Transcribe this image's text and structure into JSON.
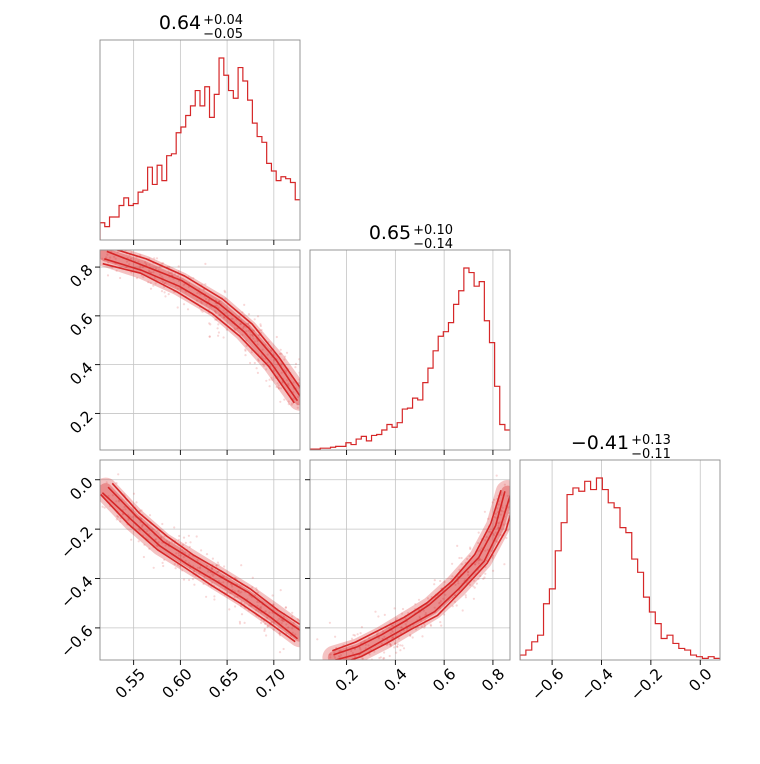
{
  "chart_data": {
    "type": "corner",
    "color": "#d62728",
    "panels": [
      {
        "id": "hist-0",
        "type": "histogram",
        "row": 0,
        "col": 0,
        "title": {
          "value": "0.64",
          "plus": "+0.04",
          "minus": "−0.05"
        },
        "xlim": [
          0.514,
          0.728
        ],
        "bin_values": [
          0.9,
          0.7,
          1.2,
          1.2,
          1.8,
          2.2,
          1.8,
          1.9,
          2.5,
          2.6,
          3.8,
          2.9,
          3.9,
          3.1,
          4.4,
          4.5,
          5.6,
          5.9,
          6.5,
          7.0,
          7.8,
          7.0,
          8.0,
          6.4,
          7.6,
          9.5,
          8.6,
          7.8,
          7.4,
          9.0,
          8.3,
          7.3,
          6.1,
          5.4,
          5.1,
          4.0,
          3.6,
          3.1,
          3.3,
          3.2,
          3.0,
          2.1
        ]
      },
      {
        "id": "scatter-1-0",
        "type": "contour",
        "row": 1,
        "col": 0,
        "xlim": [
          0.514,
          0.728
        ],
        "ylim": [
          0.05,
          0.87
        ],
        "curve": {
          "x": [
            0.52,
            0.56,
            0.6,
            0.64,
            0.67,
            0.7,
            0.728
          ],
          "y": [
            0.85,
            0.8,
            0.73,
            0.64,
            0.54,
            0.41,
            0.26
          ]
        }
      },
      {
        "id": "hist-1",
        "type": "histogram",
        "row": 1,
        "col": 1,
        "title": {
          "value": "0.65",
          "plus": "+0.10",
          "minus": "−0.14"
        },
        "xlim": [
          0.05,
          0.87
        ],
        "bin_values": [
          0.1,
          0.1,
          0.2,
          0.2,
          0.3,
          0.4,
          0.4,
          0.8,
          0.6,
          1.2,
          1.5,
          1.0,
          1.6,
          1.7,
          2.2,
          2.8,
          2.5,
          3.0,
          4.5,
          4.6,
          5.7,
          5.5,
          7.4,
          9.0,
          10.9,
          12.5,
          13.0,
          14.0,
          16.0,
          17.5,
          20.0,
          19.5,
          18.0,
          18.5,
          14.2,
          11.8,
          7.0,
          2.8,
          2.2
        ]
      },
      {
        "id": "scatter-2-0",
        "type": "contour",
        "row": 2,
        "col": 0,
        "xlim": [
          0.514,
          0.728
        ],
        "ylim": [
          -0.73,
          0.08
        ],
        "curve": {
          "x": [
            0.52,
            0.55,
            0.58,
            0.61,
            0.64,
            0.67,
            0.7,
            0.728
          ],
          "y": [
            -0.04,
            -0.16,
            -0.26,
            -0.33,
            -0.4,
            -0.47,
            -0.55,
            -0.63
          ]
        }
      },
      {
        "id": "scatter-2-1",
        "type": "contour",
        "row": 2,
        "col": 1,
        "xlim": [
          0.05,
          0.87
        ],
        "ylim": [
          -0.73,
          0.08
        ],
        "curve": {
          "x": [
            0.15,
            0.25,
            0.35,
            0.45,
            0.55,
            0.65,
            0.75,
            0.82,
            0.86
          ],
          "y": [
            -0.72,
            -0.69,
            -0.64,
            -0.58,
            -0.52,
            -0.43,
            -0.32,
            -0.19,
            -0.05
          ]
        }
      },
      {
        "id": "hist-2",
        "type": "histogram",
        "row": 2,
        "col": 2,
        "title": {
          "value": "−0.41",
          "plus": "+0.13",
          "minus": "−0.11"
        },
        "xlim": [
          -0.73,
          0.08
        ],
        "bin_values": [
          0.3,
          0.6,
          1.1,
          1.5,
          3.4,
          4.3,
          6.6,
          8.3,
          10.0,
          10.4,
          10.2,
          10.8,
          10.3,
          11.0,
          10.3,
          9.5,
          9.2,
          8.0,
          7.7,
          6.1,
          5.3,
          3.8,
          2.9,
          2.2,
          1.3,
          1.5,
          1.0,
          0.7,
          0.6,
          0.3,
          0.2,
          0.1,
          0.2,
          0.1
        ]
      }
    ],
    "axis_ticks": {
      "x_col0": [
        "0.55",
        "0.60",
        "0.65",
        "0.70"
      ],
      "x_col1": [
        "0.2",
        "0.4",
        "0.6",
        "0.8"
      ],
      "x_col2": [
        "−0.6",
        "−0.4",
        "−0.2",
        "0.0"
      ],
      "y_row1": [
        "0.8",
        "0.6",
        "0.4",
        "0.2"
      ],
      "y_row2": [
        "0.0",
        "−0.2",
        "−0.4",
        "−0.6"
      ]
    },
    "tick_values": {
      "x_col0": [
        0.55,
        0.6,
        0.65,
        0.7
      ],
      "x_col1": [
        0.2,
        0.4,
        0.6,
        0.8
      ],
      "x_col2": [
        -0.6,
        -0.4,
        -0.2,
        0.0
      ],
      "y_row1": [
        0.8,
        0.6,
        0.4,
        0.2
      ],
      "y_row2": [
        0.0,
        -0.2,
        -0.4,
        -0.6
      ]
    },
    "grid": true
  }
}
